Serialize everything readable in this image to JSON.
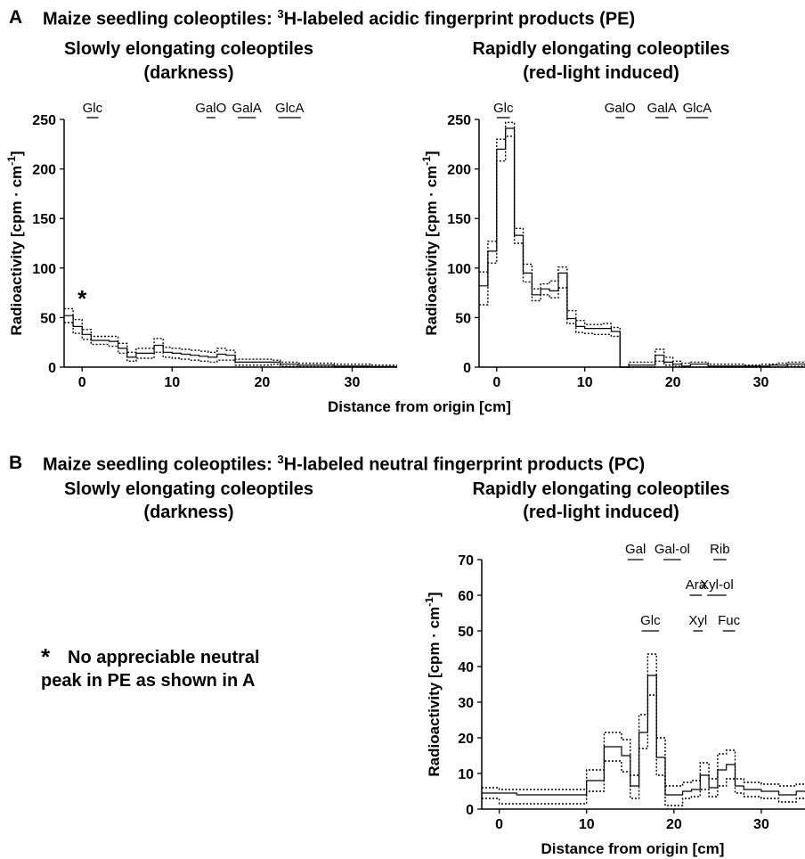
{
  "panelA": {
    "letter": "A",
    "title_pre": "Maize seedling coleoptiles: ",
    "title_sup": "3",
    "title_post": "H-labeled acidic fingerprint  products (PE)",
    "left_sub1": "Slowly elongating coleoptiles",
    "left_sub2": "(darkness)",
    "right_sub1": "Rapidly elongating coleoptiles",
    "right_sub2": "(red-light induced)",
    "shared_xlabel": "Distance from origin [cm]"
  },
  "panelB": {
    "letter": "B",
    "title_pre": "Maize seedling coleoptiles: ",
    "title_sup": "3",
    "title_post": "H-labeled neutral fingerprint products (PC)",
    "left_sub1": "Slowly elongating coleoptiles",
    "left_sub2": "(darkness)",
    "right_sub1": "Rapidly elongating coleoptiles",
    "right_sub2": "(red-light induced)",
    "note_star": "*",
    "note_line1": "No appreciable neutral",
    "note_line2": "peak in PE as shown in A"
  },
  "chart_data": [
    {
      "id": "A-dark",
      "type": "line",
      "style": "step",
      "title": "",
      "xlabel": "",
      "ylabel": "Radioactivity [cpm · cm-1]",
      "xlim": [
        -2,
        35
      ],
      "ylim": [
        0,
        250
      ],
      "xticks": [
        0,
        10,
        20,
        30
      ],
      "yticks": [
        0,
        50,
        100,
        150,
        200,
        250
      ],
      "annotation": "*",
      "annotation_point": [
        0,
        70
      ],
      "markers": [
        {
          "label": "Glc",
          "x1": 0.5,
          "x2": 1.8
        },
        {
          "label": "GalO",
          "x1": 13.8,
          "x2": 14.8
        },
        {
          "label": "GalA",
          "x1": 17.3,
          "x2": 19.3
        },
        {
          "label": "GlcA",
          "x1": 21.8,
          "x2": 24.3
        }
      ],
      "x": [
        -2,
        -1,
        0,
        1,
        2,
        3,
        4,
        5,
        6,
        7,
        8,
        9,
        10,
        11,
        12,
        13,
        14,
        15,
        16,
        17,
        18,
        19,
        20,
        21,
        22,
        23,
        24,
        25,
        26,
        27,
        28,
        29,
        30,
        31,
        32,
        33,
        34,
        35
      ],
      "series": [
        {
          "name": "",
          "values": [
            52,
            41,
            33,
            27,
            27,
            26,
            19,
            10,
            14,
            14,
            22,
            15,
            14,
            13,
            12,
            11,
            10,
            13,
            12,
            5,
            5,
            5,
            5,
            5,
            3,
            3,
            2,
            2,
            2,
            2,
            1,
            1,
            1,
            1,
            0.5,
            0.5,
            0.5,
            0.5
          ],
          "stroke": "solid"
        },
        {
          "name": "",
          "values": [
            59,
            48,
            38,
            31,
            31,
            31,
            24,
            15,
            19,
            19,
            29,
            20,
            19,
            18,
            17,
            16,
            15,
            19,
            17,
            8,
            8,
            8,
            8,
            7,
            5,
            5,
            4,
            4,
            4,
            4,
            3,
            3,
            3,
            3,
            2,
            2,
            2,
            2
          ],
          "stroke": "dotted"
        },
        {
          "name": "",
          "values": [
            45,
            34,
            28,
            23,
            23,
            21,
            14,
            6,
            9,
            9,
            15,
            10,
            9,
            8,
            7,
            6,
            5,
            7,
            7,
            2,
            2,
            2,
            2,
            3,
            1,
            1,
            0.5,
            0.5,
            0.5,
            0.5,
            0,
            0,
            0,
            0,
            0,
            0,
            0,
            0
          ],
          "stroke": "dotted"
        }
      ]
    },
    {
      "id": "A-red",
      "type": "line",
      "style": "step",
      "title": "",
      "xlabel": "",
      "ylabel": "Radioactivity [cpm · cm-1]",
      "xlim": [
        -2,
        35
      ],
      "ylim": [
        0,
        250
      ],
      "xticks": [
        0,
        10,
        20,
        30
      ],
      "yticks": [
        0,
        50,
        100,
        150,
        200,
        250
      ],
      "markers": [
        {
          "label": "Glc",
          "x1": 0,
          "x2": 1.5
        },
        {
          "label": "GalO",
          "x1": 13.5,
          "x2": 14.5
        },
        {
          "label": "GalA",
          "x1": 18,
          "x2": 19.5
        },
        {
          "label": "GlcA",
          "x1": 21.5,
          "x2": 24
        }
      ],
      "x": [
        -2,
        -1,
        0,
        1,
        2,
        3,
        4,
        5,
        6,
        7,
        8,
        9,
        10,
        11,
        12,
        13,
        14,
        15,
        16,
        17,
        18,
        19,
        20,
        21,
        22,
        23,
        24,
        25,
        26,
        27,
        28,
        29,
        30,
        31,
        32,
        33,
        34,
        35
      ],
      "series": [
        {
          "name": "",
          "values": [
            82,
            117,
            220,
            241,
            133,
            95,
            73,
            79,
            77,
            95,
            49,
            41,
            39,
            39,
            39,
            36,
            0,
            2,
            2,
            2,
            12,
            5,
            3,
            1,
            3,
            3,
            1,
            1,
            1,
            1,
            1,
            1,
            1,
            2,
            2,
            3,
            3,
            4
          ],
          "stroke": "solid"
        },
        {
          "name": "",
          "values": [
            96,
            127,
            230,
            247,
            140,
            104,
            79,
            84,
            87,
            101,
            57,
            47,
            43,
            43,
            44,
            40,
            0,
            5,
            5,
            5,
            18,
            10,
            6,
            4,
            5,
            5,
            3,
            3,
            3,
            3,
            2,
            2,
            3,
            3,
            4,
            5,
            5,
            6
          ],
          "stroke": "dotted"
        },
        {
          "name": "",
          "values": [
            63,
            105,
            208,
            233,
            125,
            86,
            67,
            73,
            70,
            80,
            44,
            35,
            34,
            33,
            33,
            31,
            0,
            0,
            0,
            0,
            6,
            2,
            1,
            0,
            0,
            0,
            0,
            0,
            0,
            0,
            0,
            0,
            0,
            0,
            0,
            1,
            1,
            2
          ],
          "stroke": "dotted"
        }
      ]
    },
    {
      "id": "B-red",
      "type": "line",
      "style": "step",
      "title": "",
      "xlabel": "Distance from origin [cm]",
      "ylabel": "Radioactivity [cpm · cm-1]",
      "xlim": [
        -2,
        35
      ],
      "ylim": [
        0,
        70
      ],
      "xticks": [
        0,
        10,
        20,
        30
      ],
      "yticks": [
        0,
        10,
        20,
        30,
        40,
        50,
        60,
        70
      ],
      "markers": [
        {
          "label": "Gal",
          "x1": 14.7,
          "x2": 16.5,
          "y": 70
        },
        {
          "label": "Gal-ol",
          "x1": 18.8,
          "x2": 20.8,
          "y": 70
        },
        {
          "label": "Rib",
          "x1": 24.5,
          "x2": 26,
          "y": 70
        },
        {
          "label": "Ara",
          "x1": 21.8,
          "x2": 23.2,
          "y": 60
        },
        {
          "label": "Xyl-ol",
          "x1": 23.8,
          "x2": 26,
          "y": 60
        },
        {
          "label": "Glc",
          "x1": 16.3,
          "x2": 18.3,
          "y": 50
        },
        {
          "label": "Xyl",
          "x1": 22.2,
          "x2": 23.3,
          "y": 50
        },
        {
          "label": "Fuc",
          "x1": 25.6,
          "x2": 27,
          "y": 50
        }
      ],
      "x": [
        -2,
        -1,
        0,
        1,
        2,
        3,
        4,
        5,
        6,
        7,
        8,
        9,
        10,
        11,
        12,
        13,
        14,
        15,
        16,
        17,
        18,
        19,
        20,
        21,
        22,
        23,
        24,
        25,
        26,
        27,
        28,
        29,
        30,
        31,
        32,
        33,
        34,
        35
      ],
      "series": [
        {
          "name": "",
          "values": [
            4.5,
            4.5,
            4.5,
            4.5,
            4,
            4,
            4,
            4,
            4,
            4,
            4,
            4,
            8,
            8,
            17.5,
            17.5,
            15,
            6.5,
            21.5,
            37.5,
            14.5,
            4,
            4,
            5,
            5.5,
            9.5,
            6,
            11,
            12.5,
            6.5,
            5.5,
            5.5,
            5,
            5,
            4,
            4,
            5,
            5
          ],
          "stroke": "solid"
        },
        {
          "name": "",
          "values": [
            6,
            6,
            5.5,
            5.5,
            5.5,
            5.5,
            5.5,
            5.5,
            5.5,
            5.5,
            5.5,
            5.5,
            11,
            11,
            21.5,
            21.5,
            19.5,
            9.5,
            26.5,
            43.5,
            20,
            6.5,
            6.5,
            7.5,
            8,
            13,
            8.5,
            15.5,
            16.5,
            8.5,
            7.5,
            7.5,
            7,
            7,
            6.5,
            6.5,
            7,
            7
          ],
          "stroke": "dotted"
        },
        {
          "name": "",
          "values": [
            3,
            3,
            1.5,
            1.5,
            1.5,
            1.5,
            1.5,
            1.5,
            1.5,
            1.5,
            1.5,
            1.5,
            5,
            5,
            13.5,
            13.5,
            10.5,
            3,
            17,
            32,
            9.5,
            1,
            1,
            3,
            3.5,
            5.5,
            3.5,
            6.5,
            8.5,
            4.5,
            3.5,
            3.5,
            3,
            3,
            2,
            2,
            3,
            3
          ],
          "stroke": "dotted"
        }
      ]
    }
  ]
}
